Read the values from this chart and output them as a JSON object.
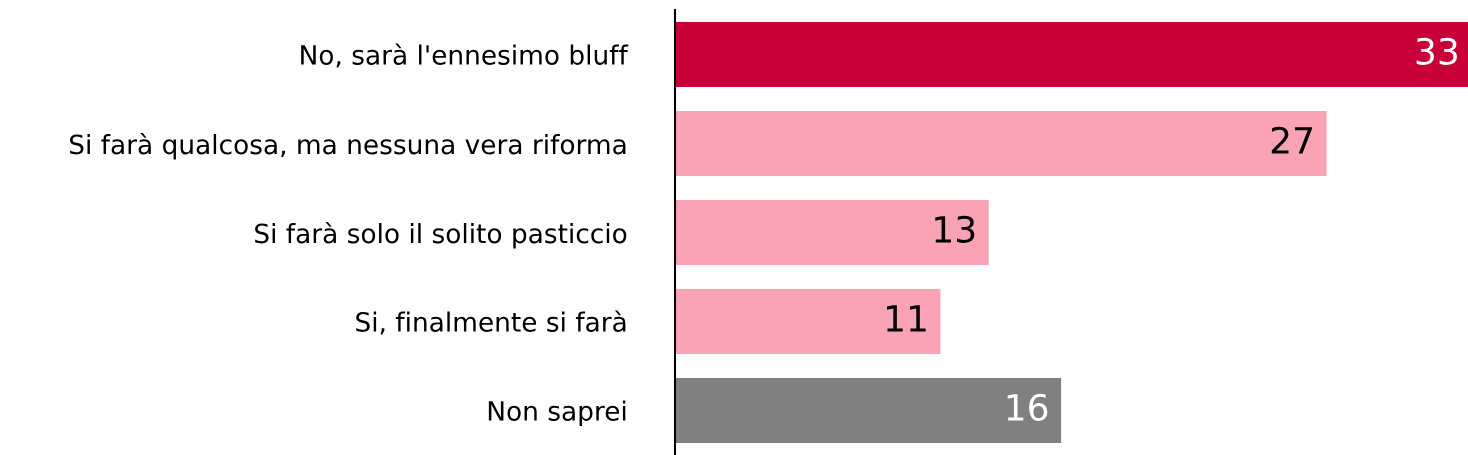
{
  "chart_data": {
    "type": "bar",
    "orientation": "horizontal",
    "categories": [
      "No, sarà l'ennesimo bluff",
      "Si farà qualcosa, ma nessuna vera riforma",
      "Si farà solo il solito pasticcio",
      "Si, finalmente si farà",
      "Non saprei"
    ],
    "values": [
      33,
      27,
      13,
      11,
      16
    ],
    "colors": [
      "#c8003a",
      "#f9a3b5",
      "#f9a3b5",
      "#f9a3b5",
      "#808080"
    ],
    "data_labels": true,
    "grid": false,
    "legend": false,
    "tick_labels": "y"
  }
}
